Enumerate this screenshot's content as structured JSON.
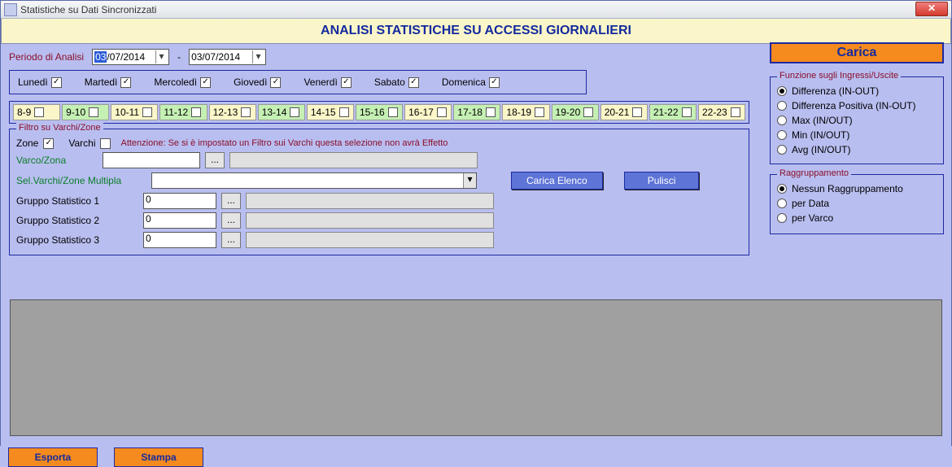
{
  "window": {
    "title": "Statistiche su Dati Sincronizzati"
  },
  "banner": "ANALISI STATISTICHE SU ACCESSI GIORNALIERI",
  "period": {
    "label": "Periodo di Analisi",
    "from_day_sel": "03",
    "from_rest": "/07/2014",
    "to": "03/07/2014",
    "sep": "-"
  },
  "carica": "Carica",
  "days": {
    "items": [
      {
        "label": "Lunedì",
        "checked": true
      },
      {
        "label": "Martedì",
        "checked": true
      },
      {
        "label": "Mercoledì",
        "checked": true
      },
      {
        "label": "Giovedì",
        "checked": true
      },
      {
        "label": "Venerdì",
        "checked": true
      },
      {
        "label": "Sabato",
        "checked": true
      },
      {
        "label": "Domenica",
        "checked": true
      }
    ]
  },
  "hours": {
    "items": [
      {
        "label": "8-9",
        "color": "#fbf6c9"
      },
      {
        "label": "9-10",
        "color": "#c5f0b4"
      },
      {
        "label": "10-11",
        "color": "#fbf6c9"
      },
      {
        "label": "11-12",
        "color": "#c5f0b4"
      },
      {
        "label": "12-13",
        "color": "#fbf6c9"
      },
      {
        "label": "13-14",
        "color": "#c5f0b4"
      },
      {
        "label": "14-15",
        "color": "#fbf6c9"
      },
      {
        "label": "15-16",
        "color": "#c5f0b4"
      },
      {
        "label": "16-17",
        "color": "#fbf6c9"
      },
      {
        "label": "17-18",
        "color": "#c5f0b4"
      },
      {
        "label": "18-19",
        "color": "#fbf6c9"
      },
      {
        "label": "19-20",
        "color": "#c5f0b4"
      },
      {
        "label": "20-21",
        "color": "#fbf6c9"
      },
      {
        "label": "21-22",
        "color": "#c5f0b4"
      },
      {
        "label": "22-23",
        "color": "#fbf6c9"
      }
    ]
  },
  "filter": {
    "legend": "Filtro su Varchi/Zone",
    "zone_label": "Zone",
    "zone_checked": true,
    "varchi_label": "Varchi",
    "varchi_checked": false,
    "attenzione": "Attenzione: Se si è impostato un Filtro sui Varchi questa selezione non avrà Effetto",
    "varco_zona_label": "Varco/Zona",
    "sel_multipla_label": "Sel.Varchi/Zone Multipla",
    "carica_elenco": "Carica Elenco",
    "pulisci": "Pulisci",
    "browse": "...",
    "groups": [
      {
        "label": "Gruppo Statistico 1",
        "value": "0"
      },
      {
        "label": "Gruppo Statistico 2",
        "value": "0"
      },
      {
        "label": "Gruppo Statistico 3",
        "value": "0"
      }
    ]
  },
  "funzione": {
    "legend": "Funzione sugli Ingressi/Uscite",
    "options": [
      {
        "label": "Differenza (IN-OUT)",
        "selected": true
      },
      {
        "label": "Differenza Positiva (IN-OUT)",
        "selected": false
      },
      {
        "label": "Max (IN/OUT)",
        "selected": false
      },
      {
        "label": "Min (IN/OUT)",
        "selected": false
      },
      {
        "label": "Avg (IN/OUT)",
        "selected": false
      }
    ]
  },
  "raggr": {
    "legend": "Raggruppamento",
    "options": [
      {
        "label": "Nessun Raggruppamento",
        "selected": true
      },
      {
        "label": "per Data",
        "selected": false
      },
      {
        "label": "per Varco",
        "selected": false
      }
    ]
  },
  "bottom": {
    "esporta": "Esporta",
    "stampa": "Stampa"
  },
  "colors": {
    "accent_blue": "#1c2aa0",
    "bg_lavender": "#b9bef0",
    "banner_bg": "#fbf6c9",
    "orange": "#f58a1f",
    "btn_blue": "#5e74d6",
    "maroon": "#8a0f2a",
    "green": "#0a7d2a"
  }
}
